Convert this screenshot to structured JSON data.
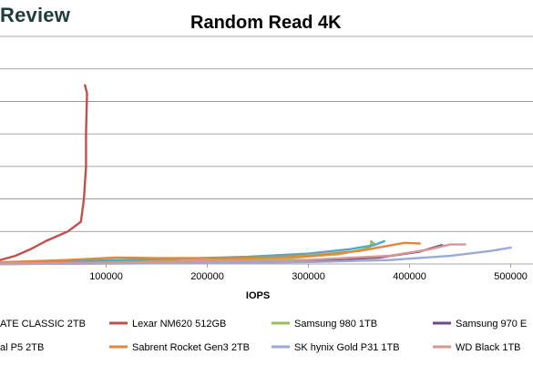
{
  "header": {
    "brand": "Review"
  },
  "chart_data": {
    "type": "line",
    "title": "Random Read 4K",
    "xlabel": "IOPS",
    "ylabel": "",
    "xlim": [
      -5000,
      522000
    ],
    "ylim": [
      0,
      7
    ],
    "x_ticks": [
      100000,
      200000,
      300000,
      400000,
      500000
    ],
    "x_tick_labels": [
      "100000",
      "200000",
      "300000",
      "400000",
      "500000"
    ],
    "grid": "horizontal",
    "legend_placement": "bottom",
    "series": [
      {
        "name": "ATE CLASSIC 2TB",
        "color": "#4a72b0",
        "x": [],
        "y": []
      },
      {
        "name": "Lexar NM620 512GB",
        "color": "#c0504d",
        "x": [
          -5000,
          10000,
          25000,
          40000,
          62000,
          75000,
          78000,
          80000,
          80000,
          81000,
          79000
        ],
        "y": [
          0.12,
          0.25,
          0.45,
          0.7,
          1.0,
          1.3,
          2.0,
          3.0,
          4.0,
          5.25,
          5.5
        ]
      },
      {
        "name": "Samsung 980 1TB",
        "color": "#9bbb59",
        "x": [
          -5000,
          80000,
          180000,
          280000,
          330000,
          355000,
          362000,
          362000,
          365000
        ],
        "y": [
          0.02,
          0.06,
          0.1,
          0.18,
          0.3,
          0.45,
          0.55,
          0.7,
          0.62
        ]
      },
      {
        "name": "Samsung 970 E",
        "color": "#6b4a8c",
        "x": [
          -5000,
          100000,
          200000,
          300000,
          370000,
          410000,
          432000
        ],
        "y": [
          0.0,
          0.02,
          0.05,
          0.1,
          0.2,
          0.38,
          0.58
        ]
      },
      {
        "name": "al P5 2TB",
        "color": "#4bacc6",
        "x": [
          -5000,
          80000,
          160000,
          240000,
          300000,
          340000,
          365000,
          375000
        ],
        "y": [
          0.05,
          0.1,
          0.15,
          0.22,
          0.32,
          0.45,
          0.58,
          0.7
        ]
      },
      {
        "name": "Sabrent Rocket Gen3 2TB",
        "color": "#e6853a",
        "x": [
          -5000,
          60000,
          110000,
          150000,
          230000,
          300000,
          350000,
          395000,
          410000
        ],
        "y": [
          0.05,
          0.12,
          0.2,
          0.18,
          0.18,
          0.25,
          0.4,
          0.65,
          0.63
        ]
      },
      {
        "name": "SK hynix Gold P31 1TB",
        "color": "#9aaad4",
        "x": [
          -5000,
          100000,
          200000,
          300000,
          380000,
          440000,
          480000,
          500000
        ],
        "y": [
          0.0,
          0.01,
          0.03,
          0.06,
          0.12,
          0.25,
          0.4,
          0.5
        ]
      },
      {
        "name": "WD Black 1TB",
        "color": "#d99694",
        "x": [
          -5000,
          100000,
          200000,
          300000,
          380000,
          420000,
          440000,
          455000
        ],
        "y": [
          0.02,
          0.04,
          0.08,
          0.13,
          0.25,
          0.45,
          0.6,
          0.6
        ]
      }
    ]
  }
}
